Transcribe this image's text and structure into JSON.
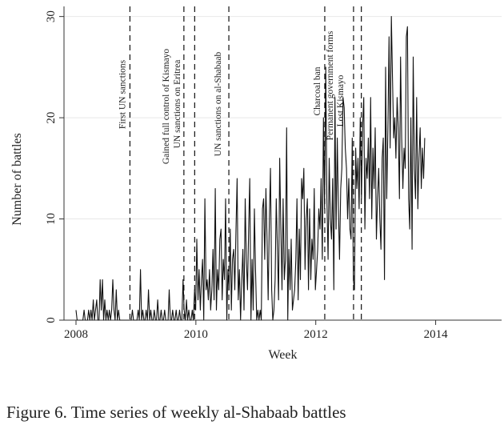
{
  "caption": "Figure 6. Time series of weekly al-Shabaab battles",
  "chart_data": {
    "type": "line",
    "title": "",
    "xlabel": "Week",
    "ylabel": "Number of battles",
    "xlim": [
      2007.8,
      2015.1
    ],
    "ylim": [
      0,
      31
    ],
    "x_ticks": [
      2008,
      2010,
      2012,
      2014
    ],
    "y_ticks": [
      0,
      10,
      20,
      30
    ],
    "grid": "horizontal at y ticks",
    "series": [
      {
        "x_start": 2008.0,
        "x_step": 0.0192,
        "values": [
          1,
          0,
          0,
          0,
          0,
          0,
          0,
          1,
          0,
          0,
          0,
          1,
          0,
          1,
          0,
          2,
          0,
          1,
          2,
          0,
          0,
          4,
          1,
          4,
          0,
          2,
          0,
          1,
          0,
          1,
          0,
          1,
          4,
          1,
          0,
          3,
          0,
          1,
          0,
          0,
          0,
          0,
          0,
          0,
          0,
          0,
          0,
          0,
          0,
          1,
          0,
          0,
          0,
          0,
          1,
          0,
          5,
          0,
          1,
          0,
          0,
          1,
          0,
          3,
          0,
          1,
          0,
          0,
          1,
          0,
          0,
          2,
          0,
          0,
          1,
          0,
          0,
          1,
          0,
          0,
          0,
          3,
          0,
          0,
          1,
          0,
          0,
          1,
          0,
          0,
          1,
          0,
          0,
          4,
          1,
          0,
          2,
          0,
          1,
          0,
          0,
          1,
          0,
          3,
          1,
          8,
          2,
          5,
          1,
          4,
          6,
          0,
          12,
          3,
          4,
          2,
          5,
          1,
          3,
          7,
          2,
          13,
          1,
          5,
          3,
          8,
          9,
          2,
          6,
          4,
          12,
          0,
          5,
          3,
          9,
          1,
          6,
          7,
          3,
          9,
          14,
          2,
          5,
          0,
          4,
          7,
          1,
          12,
          6,
          3,
          9,
          14,
          0,
          6,
          1,
          11,
          5,
          0,
          1,
          0,
          1,
          0,
          11,
          12,
          6,
          13,
          8,
          2,
          10,
          15,
          3,
          0,
          1,
          4,
          12,
          7,
          2,
          16,
          9,
          3,
          12,
          4,
          6,
          19,
          0,
          7,
          3,
          8,
          1,
          2,
          3,
          6,
          12,
          2,
          9,
          4,
          14,
          12,
          15,
          5,
          10,
          12,
          3,
          11,
          4,
          8,
          6,
          13,
          3,
          5,
          7,
          11,
          9,
          14,
          6,
          20,
          11,
          25,
          12,
          6,
          16,
          10,
          8,
          14,
          3,
          22,
          9,
          18,
          11,
          6,
          13,
          15,
          22,
          21,
          17,
          15,
          10,
          14,
          9,
          8,
          18,
          4,
          3,
          17,
          13,
          16,
          11,
          20,
          12,
          19,
          22,
          9,
          16,
          14,
          18,
          12,
          22,
          10,
          17,
          13,
          19,
          8,
          12,
          15,
          10,
          7,
          16,
          18,
          4,
          25,
          12,
          19,
          28,
          17,
          30,
          24,
          18,
          20,
          16,
          22,
          19,
          12,
          26,
          18,
          13,
          17,
          15,
          28,
          29,
          12,
          9,
          20,
          7,
          26,
          15,
          12,
          22,
          11,
          16,
          19,
          13,
          17,
          14,
          18
        ]
      }
    ],
    "events": [
      {
        "label": "First UN sanctions",
        "x": 2008.9
      },
      {
        "label": "Gained full control of Kismayo",
        "x": 2009.8
      },
      {
        "label": "UN sanctions on Eritrea",
        "x": 2009.98
      },
      {
        "label": "UN sanctions on al-Shabaab",
        "x": 2010.55
      },
      {
        "label": "Charcoal ban",
        "x": 2012.15
      },
      {
        "label": "Permanent government forms",
        "x": 2012.63
      },
      {
        "label": "Lost Kismayo",
        "x": 2012.76
      }
    ]
  }
}
